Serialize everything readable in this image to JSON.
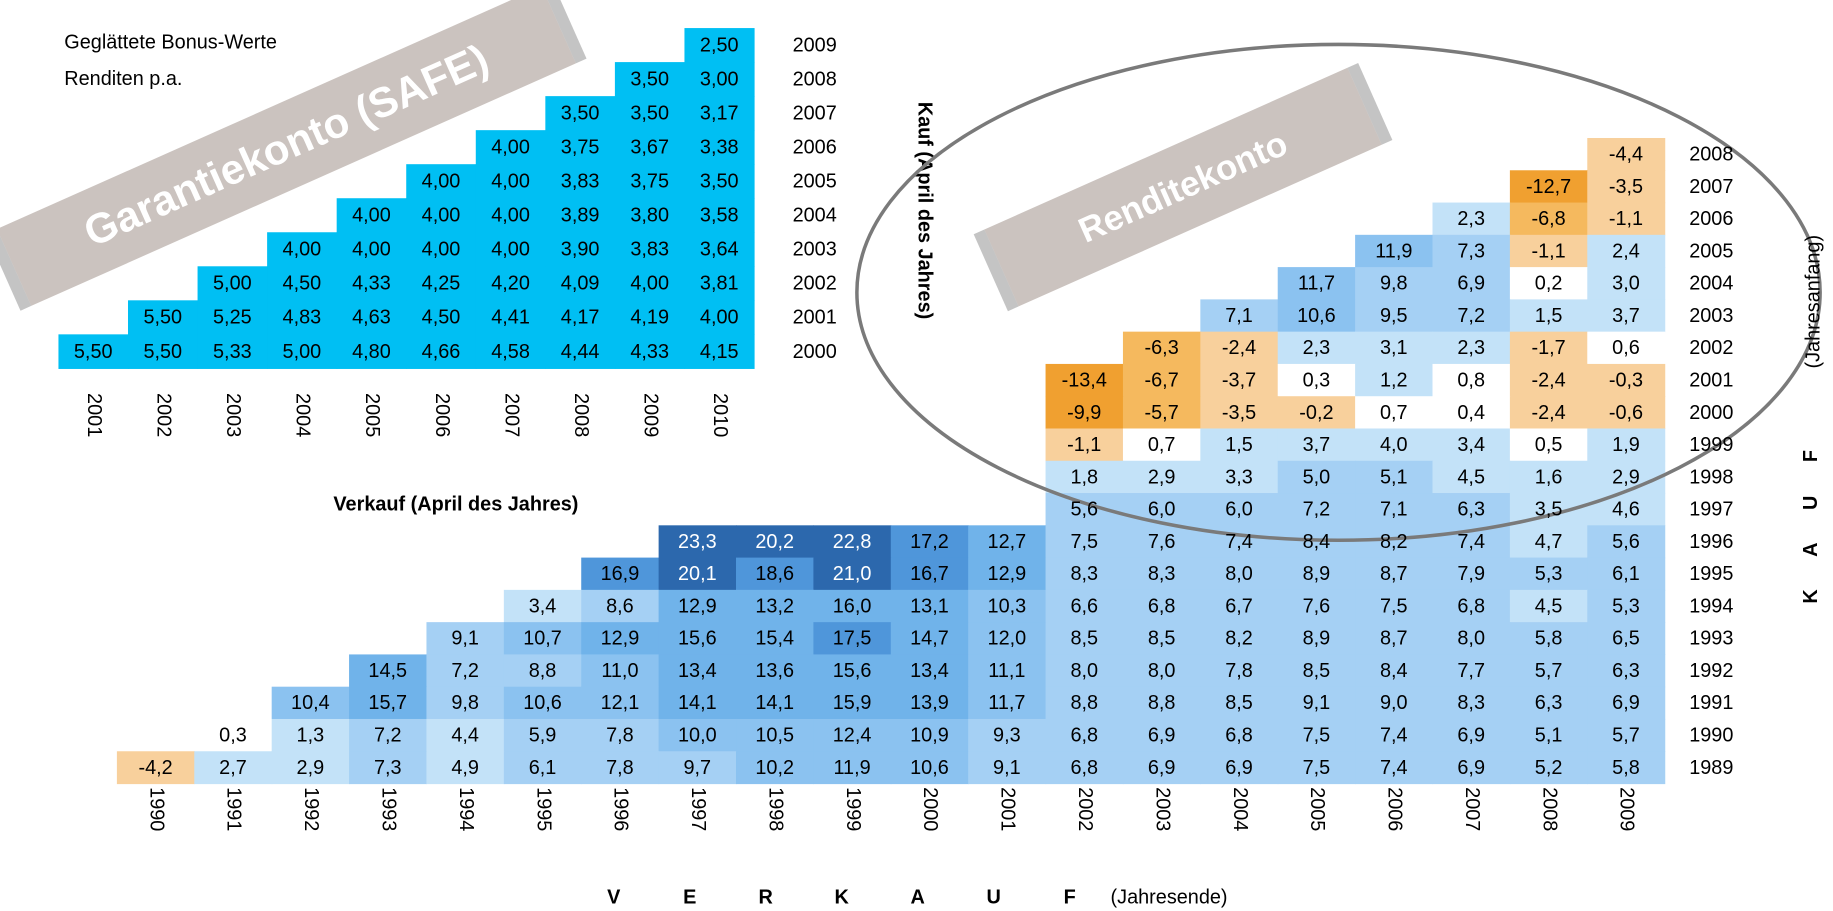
{
  "header": {
    "line1": "Geglättete Bonus-Werte",
    "line2": "Renditen p.a."
  },
  "garantie": {
    "banner": "Garantiekonto (SAFE)",
    "y_label": "Kauf (April des Jahres)",
    "x_label": "Verkauf (April des Jahres)",
    "columns": [
      "2001",
      "2002",
      "2003",
      "2004",
      "2005",
      "2006",
      "2007",
      "2008",
      "2009",
      "2010"
    ],
    "rows": [
      {
        "label": "2009",
        "cells": [
          "2,50"
        ]
      },
      {
        "label": "2008",
        "cells": [
          "3,50",
          "3,00"
        ]
      },
      {
        "label": "2007",
        "cells": [
          "3,50",
          "3,50",
          "3,17"
        ]
      },
      {
        "label": "2006",
        "cells": [
          "4,00",
          "3,75",
          "3,67",
          "3,38"
        ]
      },
      {
        "label": "2005",
        "cells": [
          "4,00",
          "4,00",
          "3,83",
          "3,75",
          "3,50"
        ]
      },
      {
        "label": "2004",
        "cells": [
          "4,00",
          "4,00",
          "4,00",
          "3,89",
          "3,80",
          "3,58"
        ]
      },
      {
        "label": "2003",
        "cells": [
          "4,00",
          "4,00",
          "4,00",
          "4,00",
          "3,90",
          "3,83",
          "3,64"
        ]
      },
      {
        "label": "2002",
        "cells": [
          "5,00",
          "4,50",
          "4,33",
          "4,25",
          "4,20",
          "4,09",
          "4,00",
          "3,81"
        ]
      },
      {
        "label": "2001",
        "cells": [
          "5,50",
          "5,25",
          "4,83",
          "4,63",
          "4,50",
          "4,41",
          "4,17",
          "4,19",
          "4,00"
        ]
      },
      {
        "label": "2000",
        "cells": [
          "5,50",
          "5,50",
          "5,33",
          "5,00",
          "4,80",
          "4,66",
          "4,58",
          "4,44",
          "4,33",
          "4,15"
        ]
      }
    ]
  },
  "rendite": {
    "banner": "Renditekonto",
    "x_label_letters": [
      "V",
      "E",
      "R",
      "K",
      "A",
      "U",
      "F"
    ],
    "x_label_note": "(Jahresende)",
    "y_label_letters": [
      "K",
      "A",
      "U",
      "F"
    ],
    "y_label_note": "(Jahresanfang)",
    "columns": [
      "1990",
      "1991",
      "1992",
      "1993",
      "1994",
      "1995",
      "1996",
      "1997",
      "1998",
      "1999",
      "2000",
      "2001",
      "2002",
      "2003",
      "2004",
      "2005",
      "2006",
      "2007",
      "2008",
      "2009"
    ],
    "rows": [
      {
        "label": "2008",
        "cells": [
          "-4,4"
        ]
      },
      {
        "label": "2007",
        "cells": [
          "-12,7",
          "-3,5"
        ]
      },
      {
        "label": "2006",
        "cells": [
          "2,3",
          "-6,8",
          "-1,1"
        ]
      },
      {
        "label": "2005",
        "cells": [
          "11,9",
          "7,3",
          "-1,1",
          "2,4"
        ]
      },
      {
        "label": "2004",
        "cells": [
          "11,7",
          "9,8",
          "6,9",
          "0,2",
          "3,0"
        ]
      },
      {
        "label": "2003",
        "cells": [
          "7,1",
          "10,6",
          "9,5",
          "7,2",
          "1,5",
          "3,7"
        ]
      },
      {
        "label": "2002",
        "cells": [
          "-6,3",
          "-2,4",
          "2,3",
          "3,1",
          "2,3",
          "-1,7",
          "0,6"
        ]
      },
      {
        "label": "2001",
        "cells": [
          "-13,4",
          "-6,7",
          "-3,7",
          "0,3",
          "1,2",
          "0,8",
          "-2,4",
          "-0,3"
        ]
      },
      {
        "label": "2000",
        "cells": [
          "-9,9",
          "-5,7",
          "-3,5",
          "-0,2",
          "0,7",
          "0,4",
          "-2,4",
          "-0,6"
        ]
      },
      {
        "label": "1999",
        "cells": [
          "-1,1",
          "0,7",
          "1,5",
          "3,7",
          "4,0",
          "3,4",
          "0,5",
          "1,9"
        ]
      },
      {
        "label": "1998",
        "cells": [
          "1,8",
          "2,9",
          "3,3",
          "5,0",
          "5,1",
          "4,5",
          "1,6",
          "2,9"
        ]
      },
      {
        "label": "1997",
        "cells": [
          "5,6",
          "6,0",
          "6,0",
          "7,2",
          "7,1",
          "6,3",
          "3,5",
          "4,6"
        ]
      },
      {
        "label": "1996",
        "cells": [
          "23,3",
          "20,2",
          "22,8",
          "17,2",
          "12,7",
          "7,5",
          "7,6",
          "7,4",
          "8,4",
          "8,2",
          "7,4",
          "4,7",
          "5,6"
        ]
      },
      {
        "label": "1995",
        "cells": [
          "16,9",
          "20,1",
          "18,6",
          "21,0",
          "16,7",
          "12,9",
          "8,3",
          "8,3",
          "8,0",
          "8,9",
          "8,7",
          "7,9",
          "5,3",
          "6,1"
        ]
      },
      {
        "label": "1994",
        "cells": [
          "3,4",
          "8,6",
          "12,9",
          "13,2",
          "16,0",
          "13,1",
          "10,3",
          "6,6",
          "6,8",
          "6,7",
          "7,6",
          "7,5",
          "6,8",
          "4,5",
          "5,3"
        ]
      },
      {
        "label": "1993",
        "cells": [
          "9,1",
          "10,7",
          "12,9",
          "15,6",
          "15,4",
          "17,5",
          "14,7",
          "12,0",
          "8,5",
          "8,5",
          "8,2",
          "8,9",
          "8,7",
          "8,0",
          "5,8",
          "6,5"
        ]
      },
      {
        "label": "1992",
        "cells": [
          "14,5",
          "7,2",
          "8,8",
          "11,0",
          "13,4",
          "13,6",
          "15,6",
          "13,4",
          "11,1",
          "8,0",
          "8,0",
          "7,8",
          "8,5",
          "8,4",
          "7,7",
          "5,7",
          "6,3"
        ]
      },
      {
        "label": "1991",
        "cells": [
          "10,4",
          "15,7",
          "9,8",
          "10,6",
          "12,1",
          "14,1",
          "14,1",
          "15,9",
          "13,9",
          "11,7",
          "8,8",
          "8,8",
          "8,5",
          "9,1",
          "9,0",
          "8,3",
          "6,3",
          "6,9"
        ]
      },
      {
        "label": "1990",
        "cells": [
          "0,3",
          "1,3",
          "7,2",
          "4,4",
          "5,9",
          "7,8",
          "10,0",
          "10,5",
          "12,4",
          "10,9",
          "9,3",
          "6,8",
          "6,9",
          "6,8",
          "7,5",
          "7,4",
          "6,9",
          "5,1",
          "5,7"
        ]
      },
      {
        "label": "1989",
        "cells": [
          "-4,2",
          "2,7",
          "2,9",
          "7,3",
          "4,9",
          "6,1",
          "7,8",
          "9,7",
          "10,2",
          "11,9",
          "10,6",
          "9,1",
          "6,8",
          "6,9",
          "6,9",
          "7,5",
          "7,4",
          "6,9",
          "5,2",
          "5,8"
        ]
      }
    ]
  }
}
